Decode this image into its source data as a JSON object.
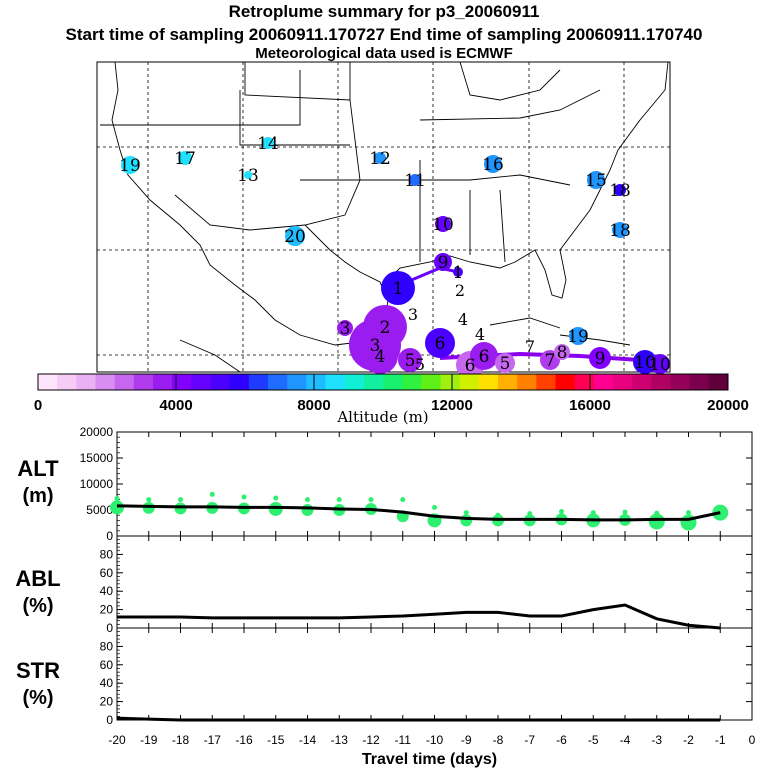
{
  "titles": {
    "line1": "Retroplume summary for p3_20060911",
    "line2": "Start time of sampling 20060911.170727     End time of sampling 20060911.170740",
    "line3": "Meteorological data used is ECMWF"
  },
  "colorbar": {
    "tick_labels": [
      "0",
      "4000",
      "8000",
      "12000",
      "16000",
      "20000"
    ],
    "label": "Altitude (m)",
    "colors": [
      "#fde6fb",
      "#f6ccf7",
      "#eab2f4",
      "#d98cf1",
      "#c766ee",
      "#b03cee",
      "#9a1cee",
      "#8200ff",
      "#6600ff",
      "#4b00ff",
      "#2f00ff",
      "#1f3bff",
      "#1f6cff",
      "#1f95ff",
      "#1ebdff",
      "#1ee0ff",
      "#11f0d4",
      "#10f0a0",
      "#18f070",
      "#30f040",
      "#60f018",
      "#a0f010",
      "#d0f000",
      "#ffe000",
      "#ffb000",
      "#ff8000",
      "#ff4000",
      "#ff0000",
      "#ff0055",
      "#ff0090",
      "#e8007f",
      "#cc0070",
      "#b00062",
      "#94005a",
      "#7a004e",
      "#60003a"
    ]
  },
  "map": {
    "day_labels": [
      "1",
      "2",
      "3",
      "4",
      "5",
      "6",
      "7",
      "8",
      "9",
      "10",
      "11",
      "12",
      "13",
      "14",
      "15",
      "16",
      "17",
      "18",
      "19",
      "20"
    ],
    "plume_numbers": [
      "1",
      "2",
      "3",
      "4",
      "5",
      "6",
      "7",
      "8",
      "9",
      "10",
      "11",
      "12",
      "13",
      "14",
      "15",
      "16",
      "17",
      "18",
      "19",
      "20",
      "1",
      "2",
      "3",
      "4",
      "5",
      "6",
      "7",
      "8",
      "9",
      "10"
    ]
  },
  "chart_data": [
    {
      "type": "line",
      "title": "ALT (m)",
      "ylabel_top": "ALT",
      "ylabel_bottom": "(m)",
      "ylim": [
        0,
        20000
      ],
      "yticks": [
        "20000",
        "15000",
        "10000",
        "5000",
        "0"
      ],
      "x": [
        -20,
        -19,
        -18,
        -17,
        -16,
        -15,
        -14,
        -13,
        -12,
        -11,
        -10,
        -9,
        -8,
        -7,
        -6,
        -5,
        -4,
        -3,
        -2,
        -1
      ],
      "values": [
        5800,
        5700,
        5600,
        5600,
        5500,
        5500,
        5400,
        5200,
        5100,
        4600,
        3800,
        3400,
        3200,
        3200,
        3200,
        3100,
        3100,
        3200,
        3200,
        4500
      ],
      "dots": [
        5500,
        5400,
        5300,
        5400,
        5300,
        5200,
        5000,
        5000,
        5200,
        3800,
        3000,
        3000,
        3000,
        3000,
        3200,
        3000,
        3100,
        2800,
        2600,
        4500
      ],
      "dots_high": [
        7200,
        7000,
        7000,
        8000,
        7500,
        7300,
        7000,
        7000,
        7000,
        7000,
        5500,
        4500,
        4000,
        4300,
        4700,
        4500,
        4600,
        4400,
        4500,
        4500
      ]
    },
    {
      "type": "line",
      "title": "ABL (%)",
      "ylabel_top": "ABL",
      "ylabel_bottom": "(%)",
      "ylim": [
        0,
        100
      ],
      "yticks": [
        "80",
        "60",
        "40",
        "20",
        "0"
      ],
      "x": [
        -20,
        -19,
        -18,
        -17,
        -16,
        -15,
        -14,
        -13,
        -12,
        -11,
        -10,
        -9,
        -8,
        -7,
        -6,
        -5,
        -4,
        -3,
        -2,
        -1
      ],
      "values": [
        12,
        12,
        12,
        11,
        11,
        11,
        11,
        11,
        12,
        13,
        15,
        17,
        17,
        13,
        13,
        20,
        25,
        10,
        3,
        0
      ]
    },
    {
      "type": "line",
      "title": "STR (%)",
      "ylabel_top": "STR",
      "ylabel_bottom": "(%)",
      "ylim": [
        0,
        100
      ],
      "yticks": [
        "80",
        "60",
        "40",
        "20",
        "0"
      ],
      "x": [
        -20,
        -19,
        -18,
        -17,
        -16,
        -15,
        -14,
        -13,
        -12,
        -11,
        -10,
        -9,
        -8,
        -7,
        -6,
        -5,
        -4,
        -3,
        -2,
        -1
      ],
      "values": [
        2,
        1,
        0,
        0,
        0,
        0,
        0,
        0,
        0,
        0,
        0,
        0,
        0,
        0,
        0,
        0,
        0,
        0,
        0,
        0
      ]
    }
  ],
  "xaxis": {
    "ticks": [
      "-20",
      "-19",
      "-18",
      "-17",
      "-16",
      "-15",
      "-14",
      "-13",
      "-12",
      "-11",
      "-10",
      "-9",
      "-8",
      "-7",
      "-6",
      "-5",
      "-4",
      "-3",
      "-2",
      "-1",
      "0"
    ],
    "label": "Travel time (days)"
  }
}
